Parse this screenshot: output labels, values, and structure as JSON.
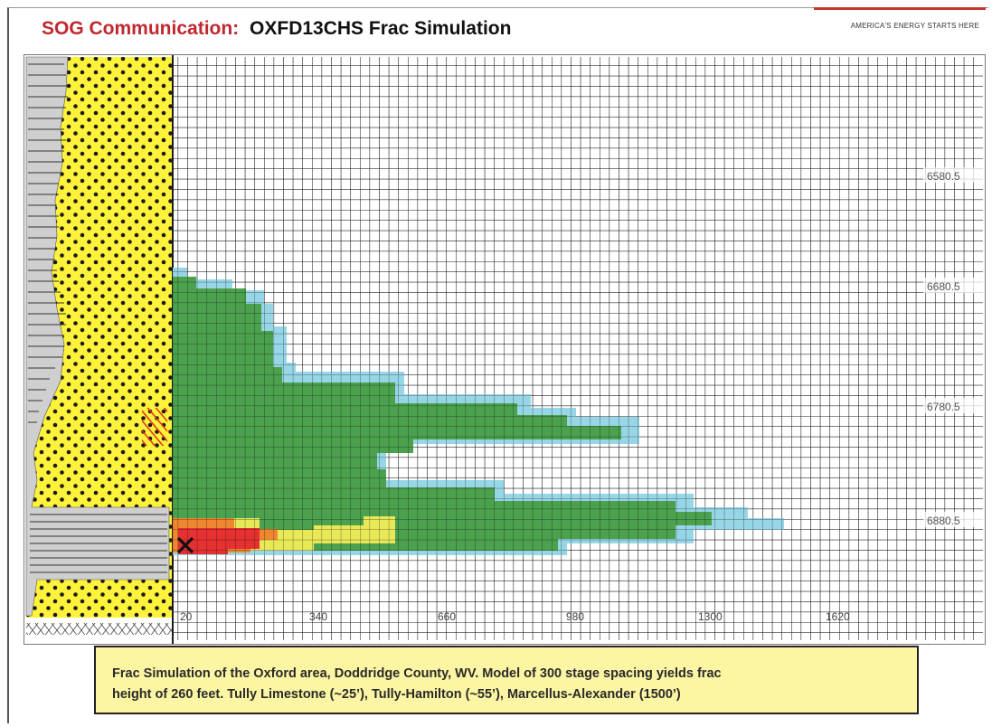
{
  "header": {
    "brand": "SOG Communication:",
    "subject": "OXFD13CHS Frac Simulation",
    "tagline": "AMERICA'S ENERGY STARTS HERE"
  },
  "diagram": {
    "depth_labels": [
      "6580.5",
      "6680.5",
      "6780.5",
      "6880.5"
    ],
    "x_labels": [
      "20",
      "340",
      "660",
      "980",
      "1300",
      "1620"
    ],
    "colors": {
      "sand": "#fff23a",
      "dots": "#1a1a1a",
      "shale": "#cfcfcf",
      "grid": "#1c1c1c",
      "frac_outer": "#8fd3e6",
      "frac_green": "#3c9a3e",
      "frac_yellow": "#e8e84a",
      "frac_orange": "#ef7d1f",
      "frac_red": "#e61f1f",
      "hatch": "#e0321e"
    }
  },
  "caption": {
    "line1": "Frac Simulation of the Oxford area, Doddridge County, WV.    Model of 300 stage spacing yields frac",
    "line2": "height of 260 feet.    Tully Limestone (~25’),  Tully-Hamilton (~55’), Marcellus-Alexander (1500’)"
  }
}
